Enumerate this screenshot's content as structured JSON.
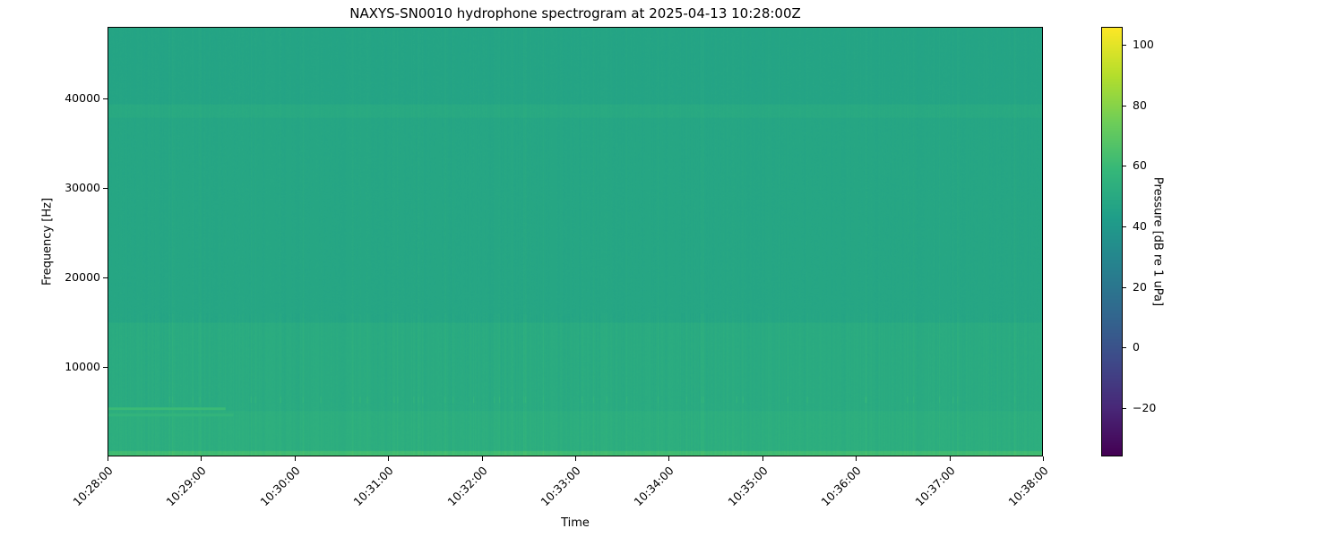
{
  "chart_data": {
    "type": "heatmap",
    "title": "NAXYS-SN0010 hydrophone spectrogram at 2025-04-13 10:28:00Z",
    "xlabel": "Time",
    "ylabel": "Frequency [Hz]",
    "colorbar_label": "Pressure [dB re 1 uPa]",
    "colormap": "viridis",
    "xlim": [
      "10:28:00",
      "10:38:00"
    ],
    "x_ticks": [
      "10:28:00",
      "10:29:00",
      "10:30:00",
      "10:31:00",
      "10:32:00",
      "10:33:00",
      "10:34:00",
      "10:35:00",
      "10:36:00",
      "10:37:00",
      "10:38:00"
    ],
    "ylim": [
      0,
      48000
    ],
    "y_ticks": [
      10000,
      20000,
      30000,
      40000
    ],
    "clim": [
      -36,
      106
    ],
    "c_ticks": [
      -20,
      0,
      20,
      40,
      60,
      80,
      100
    ],
    "grid": false,
    "frequency_bands_hz": [
      {
        "from": 0,
        "to": 500,
        "level_db": 62
      },
      {
        "from": 500,
        "to": 5000,
        "level_db": 53
      },
      {
        "from": 5000,
        "to": 15000,
        "level_db": 51
      },
      {
        "from": 15000,
        "to": 38000,
        "level_db": 48
      },
      {
        "from": 38000,
        "to": 39500,
        "level_db": 50
      },
      {
        "from": 39500,
        "to": 48000,
        "level_db": 47
      }
    ],
    "features": [
      {
        "kind": "tonal",
        "start": "10:28:00",
        "end": "10:29:15",
        "freq_hz": 5300,
        "level_db": 60
      },
      {
        "kind": "tonal",
        "start": "10:28:00",
        "end": "10:29:20",
        "freq_hz": 4600,
        "level_db": 57
      },
      {
        "kind": "transients",
        "freq_hz": 6300,
        "level_db": 58
      }
    ]
  }
}
